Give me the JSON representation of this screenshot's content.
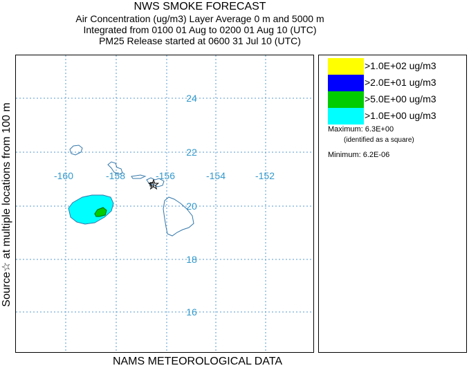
{
  "header": {
    "title": "NWS SMOKE FORECAST",
    "line2": "Air Concentration (ug/m3) Layer Average    0 m and  5000 m",
    "line3": "Integrated from 0100 01 Aug to 0200 01 Aug 10 (UTC)",
    "line4": "PM25 Release started at 0600 31 Jul 10 (UTC)"
  },
  "side_label": "Source☆  at multiple locations     from   100 m",
  "bottom_label": "NAMS METEOROLOGICAL DATA",
  "map": {
    "longitude_labels": [
      "-160",
      "-158",
      "-156",
      "-154",
      "-152"
    ],
    "latitude_labels": [
      "24",
      "22",
      "20",
      "18",
      "16"
    ],
    "grid_color": "#5599cc",
    "label_color": "#3399cc",
    "coast_color": "#3377aa"
  },
  "legend": {
    "items": [
      {
        "label": ">1.0E+02 ug/m3",
        "color": "#ffff00"
      },
      {
        "label": ">2.0E+01 ug/m3",
        "color": "#0000ff"
      },
      {
        "label": ">5.0E+00 ug/m3",
        "color": "#00cc00"
      },
      {
        "label": ">1.0E+00 ug/m3",
        "color": "#00ffff"
      }
    ],
    "maximum": "Maximum: 6.3E+00",
    "maximum_note": "(identified as a square)",
    "minimum": "Minimum: 6.2E-06"
  }
}
